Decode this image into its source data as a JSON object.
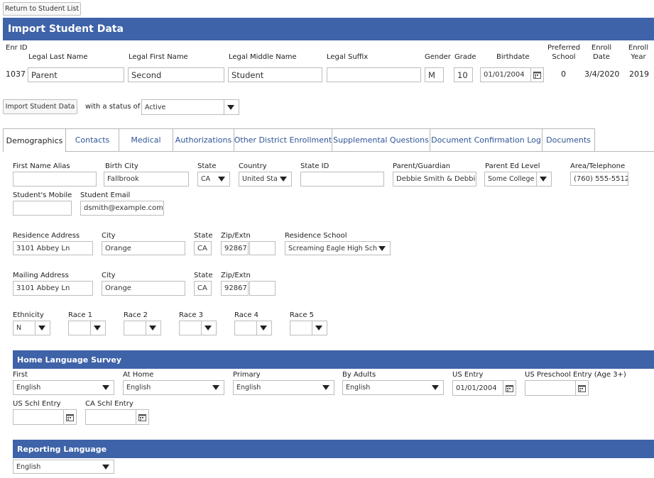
{
  "top": {
    "return_label": "Return to Student List"
  },
  "banner": {
    "title": "Import Student Data"
  },
  "columns": {
    "enr_id": "Enr ID",
    "last": "Legal Last Name",
    "first": "Legal First Name",
    "middle": "Legal Middle Name",
    "suffix": "Legal Suffix",
    "gender": "Gender",
    "grade": "Grade",
    "birthdate": "Birthdate",
    "preferred_school": "Preferred School",
    "enroll_date": "Enroll Date",
    "enroll_year": "Enroll Year"
  },
  "student": {
    "enr_id": "1037",
    "last": "Parent",
    "first": "Second",
    "middle": "Student",
    "suffix": "",
    "gender": "M",
    "grade": "10",
    "birthdate": "01/01/2004",
    "preferred_school": "0",
    "enroll_date": "3/4/2020",
    "enroll_year": "2019"
  },
  "import": {
    "button_label": "Import Student Data",
    "status_text": "with a status of",
    "status_value": "Active"
  },
  "tabs": [
    {
      "label": "Demographics",
      "active": true
    },
    {
      "label": "Contacts"
    },
    {
      "label": "Medical"
    },
    {
      "label": "Authorizations"
    },
    {
      "label": "Other District Enrollment"
    },
    {
      "label": "Supplemental Questions"
    },
    {
      "label": "Document Confirmation Log"
    },
    {
      "label": "Documents"
    }
  ],
  "demo": {
    "first_name_alias": {
      "label": "First Name Alias",
      "value": ""
    },
    "birth_city": {
      "label": "Birth City",
      "value": "Fallbrook"
    },
    "birth_state": {
      "label": "State",
      "value": "CA"
    },
    "country": {
      "label": "Country",
      "value": "United Sta"
    },
    "state_id": {
      "label": "State ID",
      "value": ""
    },
    "parent_guardian": {
      "label": "Parent/Guardian",
      "value": "Debbie Smith & Debbie J"
    },
    "parent_ed_level": {
      "label": "Parent Ed Level",
      "value": "Some College"
    },
    "area_telephone": {
      "label": "Area/Telephone",
      "value": "(760) 555-5512"
    },
    "students_mobile": {
      "label": "Student's Mobile",
      "value": ""
    },
    "student_email": {
      "label": "Student Email",
      "value": "dsmith@example.com"
    }
  },
  "residence": {
    "address": {
      "label": "Residence Address",
      "value": "3101 Abbey Ln"
    },
    "city": {
      "label": "City",
      "value": "Orange"
    },
    "state": {
      "label": "State",
      "value": "CA"
    },
    "zip": {
      "label": "Zip/Extn",
      "value": "92867",
      "ext": ""
    },
    "school": {
      "label": "Residence School",
      "value": "Screaming Eagle High Sch"
    }
  },
  "mailing": {
    "address": {
      "label": "Mailing Address",
      "value": "3101 Abbey Ln"
    },
    "city": {
      "label": "City",
      "value": "Orange"
    },
    "state": {
      "label": "State",
      "value": "CA"
    },
    "zip": {
      "label": "Zip/Extn",
      "value": "92867",
      "ext": ""
    }
  },
  "ethnicity": {
    "ethnicity": {
      "label": "Ethnicity",
      "value": "N"
    },
    "race1": {
      "label": "Race 1",
      "value": ""
    },
    "race2": {
      "label": "Race 2",
      "value": ""
    },
    "race3": {
      "label": "Race 3",
      "value": ""
    },
    "race4": {
      "label": "Race 4",
      "value": ""
    },
    "race5": {
      "label": "Race 5",
      "value": ""
    }
  },
  "hls": {
    "title": "Home Language Survey",
    "first": {
      "label": "First",
      "value": "English"
    },
    "at_home": {
      "label": "At Home",
      "value": "English"
    },
    "primary": {
      "label": "Primary",
      "value": "English"
    },
    "by_adults": {
      "label": "By Adults",
      "value": "English"
    },
    "us_entry": {
      "label": "US Entry",
      "value": "01/01/2004"
    },
    "us_preschool_entry": {
      "label": "US Preschool Entry (Age 3+)",
      "value": ""
    },
    "us_schl_entry": {
      "label": "US Schl Entry",
      "value": ""
    },
    "ca_schl_entry": {
      "label": "CA Schl Entry",
      "value": ""
    }
  },
  "reporting": {
    "title": "Reporting Language",
    "value": "English"
  }
}
